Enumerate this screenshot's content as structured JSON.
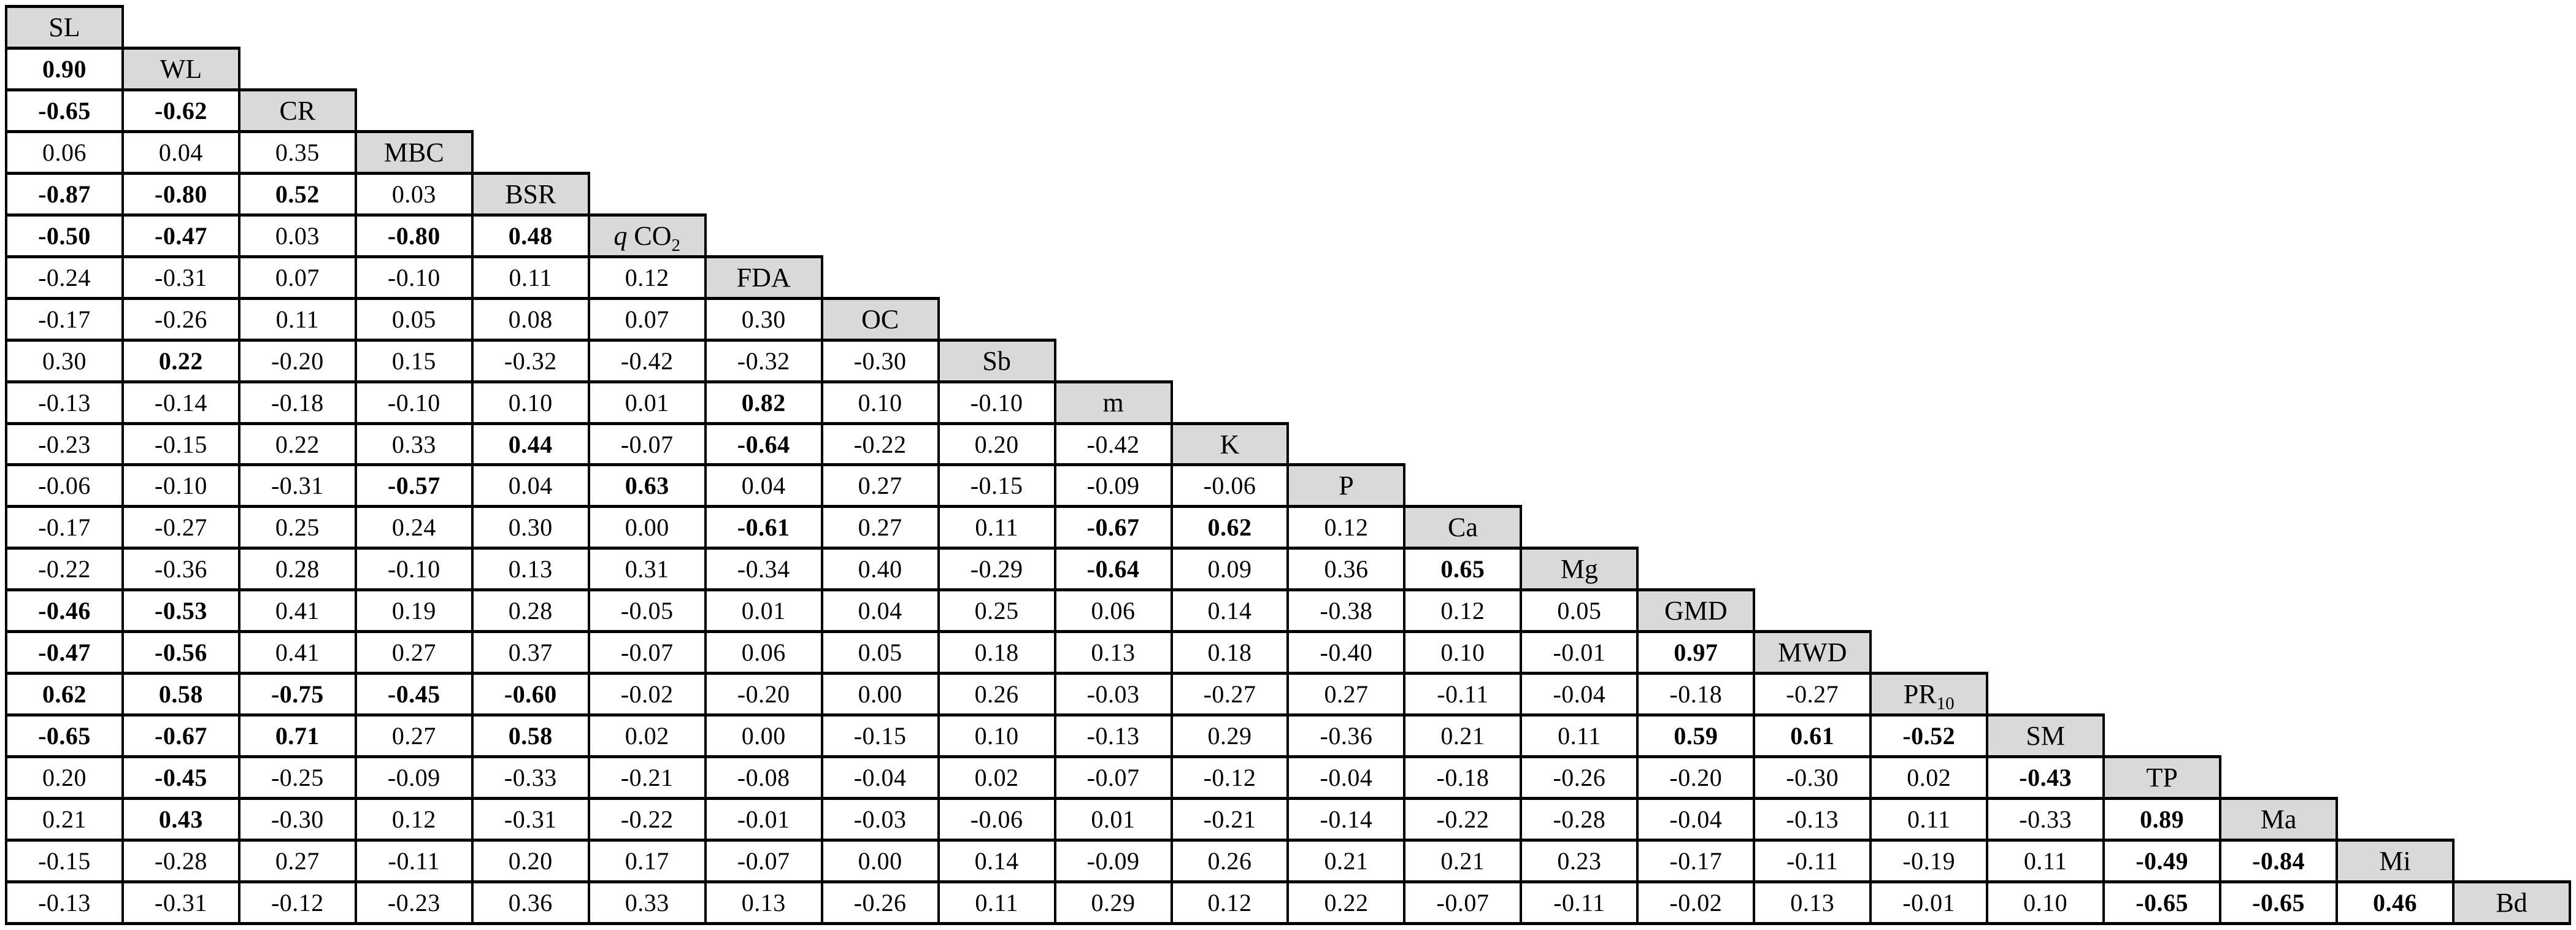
{
  "style": {
    "header_bg": "#d9d9d9",
    "cell_bg": "#ffffff",
    "border_color": "#000000",
    "text_color": "#000000",
    "page_bg": "#ffffff"
  },
  "table": {
    "headers": [
      {
        "id": "SL",
        "parts": [
          {
            "t": "SL"
          }
        ]
      },
      {
        "id": "WL",
        "parts": [
          {
            "t": "WL"
          }
        ]
      },
      {
        "id": "CR",
        "parts": [
          {
            "t": "CR"
          }
        ]
      },
      {
        "id": "MBC",
        "parts": [
          {
            "t": "MBC"
          }
        ]
      },
      {
        "id": "BSR",
        "parts": [
          {
            "t": "BSR"
          }
        ]
      },
      {
        "id": "qCO2",
        "parts": [
          {
            "t": "q",
            "style": "italic"
          },
          {
            "t": " CO"
          },
          {
            "t": "2",
            "style": "sub"
          }
        ]
      },
      {
        "id": "FDA",
        "parts": [
          {
            "t": "FDA"
          }
        ]
      },
      {
        "id": "OC",
        "parts": [
          {
            "t": "OC"
          }
        ]
      },
      {
        "id": "Sb",
        "parts": [
          {
            "t": "Sb"
          }
        ]
      },
      {
        "id": "m",
        "parts": [
          {
            "t": "m"
          }
        ]
      },
      {
        "id": "K",
        "parts": [
          {
            "t": "K"
          }
        ]
      },
      {
        "id": "P",
        "parts": [
          {
            "t": "P"
          }
        ]
      },
      {
        "id": "Ca",
        "parts": [
          {
            "t": "Ca"
          }
        ]
      },
      {
        "id": "Mg",
        "parts": [
          {
            "t": "Mg"
          }
        ]
      },
      {
        "id": "GMD",
        "parts": [
          {
            "t": "GMD"
          }
        ]
      },
      {
        "id": "MWD",
        "parts": [
          {
            "t": "MWD"
          }
        ]
      },
      {
        "id": "PR10",
        "parts": [
          {
            "t": "PR"
          },
          {
            "t": "10",
            "style": "sub"
          }
        ]
      },
      {
        "id": "SM",
        "parts": [
          {
            "t": "SM"
          }
        ]
      },
      {
        "id": "TP",
        "parts": [
          {
            "t": "TP"
          }
        ]
      },
      {
        "id": "Ma",
        "parts": [
          {
            "t": "Ma"
          }
        ]
      },
      {
        "id": "Mi",
        "parts": [
          {
            "t": "Mi"
          }
        ]
      },
      {
        "id": "Bd",
        "parts": [
          {
            "t": "Bd"
          }
        ]
      }
    ],
    "rows": [
      {
        "header": "SL",
        "cells": []
      },
      {
        "header": "WL",
        "cells": [
          [
            "0.90",
            1
          ]
        ]
      },
      {
        "header": "CR",
        "cells": [
          [
            "-0.65",
            1
          ],
          [
            "-0.62",
            1
          ]
        ]
      },
      {
        "header": "MBC",
        "cells": [
          [
            "0.06",
            0
          ],
          [
            "0.04",
            0
          ],
          [
            "0.35",
            0
          ]
        ]
      },
      {
        "header": "BSR",
        "cells": [
          [
            "-0.87",
            1
          ],
          [
            "-0.80",
            1
          ],
          [
            "0.52",
            1
          ],
          [
            "0.03",
            0
          ]
        ]
      },
      {
        "header": "qCO2",
        "cells": [
          [
            "-0.50",
            1
          ],
          [
            "-0.47",
            1
          ],
          [
            "0.03",
            0
          ],
          [
            "-0.80",
            1
          ],
          [
            "0.48",
            1
          ]
        ]
      },
      {
        "header": "FDA",
        "cells": [
          [
            "-0.24",
            0
          ],
          [
            "-0.31",
            0
          ],
          [
            "0.07",
            0
          ],
          [
            "-0.10",
            0
          ],
          [
            "0.11",
            0
          ],
          [
            "0.12",
            0
          ]
        ]
      },
      {
        "header": "OC",
        "cells": [
          [
            "-0.17",
            0
          ],
          [
            "-0.26",
            0
          ],
          [
            "0.11",
            0
          ],
          [
            "0.05",
            0
          ],
          [
            "0.08",
            0
          ],
          [
            "0.07",
            0
          ],
          [
            "0.30",
            0
          ]
        ]
      },
      {
        "header": "Sb",
        "cells": [
          [
            "0.30",
            0
          ],
          [
            "0.22",
            1
          ],
          [
            "-0.20",
            0
          ],
          [
            "0.15",
            0
          ],
          [
            "-0.32",
            0
          ],
          [
            "-0.42",
            0
          ],
          [
            "-0.32",
            0
          ],
          [
            "-0.30",
            0
          ]
        ]
      },
      {
        "header": "m",
        "cells": [
          [
            "-0.13",
            0
          ],
          [
            "-0.14",
            0
          ],
          [
            "-0.18",
            0
          ],
          [
            "-0.10",
            0
          ],
          [
            "0.10",
            0
          ],
          [
            "0.01",
            0
          ],
          [
            "0.82",
            1
          ],
          [
            "0.10",
            0
          ],
          [
            "-0.10",
            0
          ]
        ]
      },
      {
        "header": "K",
        "cells": [
          [
            "-0.23",
            0
          ],
          [
            "-0.15",
            0
          ],
          [
            "0.22",
            0
          ],
          [
            "0.33",
            0
          ],
          [
            "0.44",
            1
          ],
          [
            "-0.07",
            0
          ],
          [
            "-0.64",
            1
          ],
          [
            "-0.22",
            0
          ],
          [
            "0.20",
            0
          ],
          [
            "-0.42",
            0
          ]
        ]
      },
      {
        "header": "P",
        "cells": [
          [
            "-0.06",
            0
          ],
          [
            "-0.10",
            0
          ],
          [
            "-0.31",
            0
          ],
          [
            "-0.57",
            1
          ],
          [
            "0.04",
            0
          ],
          [
            "0.63",
            1
          ],
          [
            "0.04",
            0
          ],
          [
            "0.27",
            0
          ],
          [
            "-0.15",
            0
          ],
          [
            "-0.09",
            0
          ],
          [
            "-0.06",
            0
          ]
        ]
      },
      {
        "header": "Ca",
        "cells": [
          [
            "-0.17",
            0
          ],
          [
            "-0.27",
            0
          ],
          [
            "0.25",
            0
          ],
          [
            "0.24",
            0
          ],
          [
            "0.30",
            0
          ],
          [
            "0.00",
            0
          ],
          [
            "-0.61",
            1
          ],
          [
            "0.27",
            0
          ],
          [
            "0.11",
            0
          ],
          [
            "-0.67",
            1
          ],
          [
            "0.62",
            1
          ],
          [
            "0.12",
            0
          ]
        ]
      },
      {
        "header": "Mg",
        "cells": [
          [
            "-0.22",
            0
          ],
          [
            "-0.36",
            0
          ],
          [
            "0.28",
            0
          ],
          [
            "-0.10",
            0
          ],
          [
            "0.13",
            0
          ],
          [
            "0.31",
            0
          ],
          [
            "-0.34",
            0
          ],
          [
            "0.40",
            0
          ],
          [
            "-0.29",
            0
          ],
          [
            "-0.64",
            1
          ],
          [
            "0.09",
            0
          ],
          [
            "0.36",
            0
          ],
          [
            "0.65",
            1
          ]
        ]
      },
      {
        "header": "GMD",
        "cells": [
          [
            "-0.46",
            1
          ],
          [
            "-0.53",
            1
          ],
          [
            "0.41",
            0
          ],
          [
            "0.19",
            0
          ],
          [
            "0.28",
            0
          ],
          [
            "-0.05",
            0
          ],
          [
            "0.01",
            0
          ],
          [
            "0.04",
            0
          ],
          [
            "0.25",
            0
          ],
          [
            "0.06",
            0
          ],
          [
            "0.14",
            0
          ],
          [
            "-0.38",
            0
          ],
          [
            "0.12",
            0
          ],
          [
            "0.05",
            0
          ]
        ]
      },
      {
        "header": "MWD",
        "cells": [
          [
            "-0.47",
            1
          ],
          [
            "-0.56",
            1
          ],
          [
            "0.41",
            0
          ],
          [
            "0.27",
            0
          ],
          [
            "0.37",
            0
          ],
          [
            "-0.07",
            0
          ],
          [
            "0.06",
            0
          ],
          [
            "0.05",
            0
          ],
          [
            "0.18",
            0
          ],
          [
            "0.13",
            0
          ],
          [
            "0.18",
            0
          ],
          [
            "-0.40",
            0
          ],
          [
            "0.10",
            0
          ],
          [
            "-0.01",
            0
          ],
          [
            "0.97",
            1
          ]
        ]
      },
      {
        "header": "PR10",
        "cells": [
          [
            "0.62",
            1
          ],
          [
            "0.58",
            1
          ],
          [
            "-0.75",
            1
          ],
          [
            "-0.45",
            1
          ],
          [
            "-0.60",
            1
          ],
          [
            "-0.02",
            0
          ],
          [
            "-0.20",
            0
          ],
          [
            "0.00",
            0
          ],
          [
            "0.26",
            0
          ],
          [
            "-0.03",
            0
          ],
          [
            "-0.27",
            0
          ],
          [
            "0.27",
            0
          ],
          [
            "-0.11",
            0
          ],
          [
            "-0.04",
            0
          ],
          [
            "-0.18",
            0
          ],
          [
            "-0.27",
            0
          ]
        ]
      },
      {
        "header": "SM",
        "cells": [
          [
            "-0.65",
            1
          ],
          [
            "-0.67",
            1
          ],
          [
            "0.71",
            1
          ],
          [
            "0.27",
            0
          ],
          [
            "0.58",
            1
          ],
          [
            "0.02",
            0
          ],
          [
            "0.00",
            0
          ],
          [
            "-0.15",
            0
          ],
          [
            "0.10",
            0
          ],
          [
            "-0.13",
            0
          ],
          [
            "0.29",
            0
          ],
          [
            "-0.36",
            0
          ],
          [
            "0.21",
            0
          ],
          [
            "0.11",
            0
          ],
          [
            "0.59",
            1
          ],
          [
            "0.61",
            1
          ],
          [
            "-0.52",
            1
          ]
        ]
      },
      {
        "header": "TP",
        "cells": [
          [
            "0.20",
            0
          ],
          [
            "-0.45",
            1
          ],
          [
            "-0.25",
            0
          ],
          [
            "-0.09",
            0
          ],
          [
            "-0.33",
            0
          ],
          [
            "-0.21",
            0
          ],
          [
            "-0.08",
            0
          ],
          [
            "-0.04",
            0
          ],
          [
            "0.02",
            0
          ],
          [
            "-0.07",
            0
          ],
          [
            "-0.12",
            0
          ],
          [
            "-0.04",
            0
          ],
          [
            "-0.18",
            0
          ],
          [
            "-0.26",
            0
          ],
          [
            "-0.20",
            0
          ],
          [
            "-0.30",
            0
          ],
          [
            "0.02",
            0
          ],
          [
            "-0.43",
            1
          ]
        ]
      },
      {
        "header": "Ma",
        "cells": [
          [
            "0.21",
            0
          ],
          [
            "0.43",
            1
          ],
          [
            "-0.30",
            0
          ],
          [
            "0.12",
            0
          ],
          [
            "-0.31",
            0
          ],
          [
            "-0.22",
            0
          ],
          [
            "-0.01",
            0
          ],
          [
            "-0.03",
            0
          ],
          [
            "-0.06",
            0
          ],
          [
            "0.01",
            0
          ],
          [
            "-0.21",
            0
          ],
          [
            "-0.14",
            0
          ],
          [
            "-0.22",
            0
          ],
          [
            "-0.28",
            0
          ],
          [
            "-0.04",
            0
          ],
          [
            "-0.13",
            0
          ],
          [
            "0.11",
            0
          ],
          [
            "-0.33",
            0
          ],
          [
            "0.89",
            1
          ]
        ]
      },
      {
        "header": "Mi",
        "cells": [
          [
            "-0.15",
            0
          ],
          [
            "-0.28",
            0
          ],
          [
            "0.27",
            0
          ],
          [
            "-0.11",
            0
          ],
          [
            "0.20",
            0
          ],
          [
            "0.17",
            0
          ],
          [
            "-0.07",
            0
          ],
          [
            "0.00",
            0
          ],
          [
            "0.14",
            0
          ],
          [
            "-0.09",
            0
          ],
          [
            "0.26",
            0
          ],
          [
            "0.21",
            0
          ],
          [
            "0.21",
            0
          ],
          [
            "0.23",
            0
          ],
          [
            "-0.17",
            0
          ],
          [
            "-0.11",
            0
          ],
          [
            "-0.19",
            0
          ],
          [
            "0.11",
            0
          ],
          [
            "-0.49",
            1
          ],
          [
            "-0.84",
            1
          ]
        ]
      },
      {
        "header": "Bd",
        "cells": [
          [
            "-0.13",
            0
          ],
          [
            "-0.31",
            0
          ],
          [
            "-0.12",
            0
          ],
          [
            "-0.23",
            0
          ],
          [
            "0.36",
            0
          ],
          [
            "0.33",
            0
          ],
          [
            "0.13",
            0
          ],
          [
            "-0.26",
            0
          ],
          [
            "0.11",
            0
          ],
          [
            "0.29",
            0
          ],
          [
            "0.12",
            0
          ],
          [
            "0.22",
            0
          ],
          [
            "-0.07",
            0
          ],
          [
            "-0.11",
            0
          ],
          [
            "-0.02",
            0
          ],
          [
            "0.13",
            0
          ],
          [
            "-0.01",
            0
          ],
          [
            "0.10",
            0
          ],
          [
            "-0.65",
            1
          ],
          [
            "-0.65",
            1
          ],
          [
            "0.46",
            1
          ]
        ]
      }
    ]
  }
}
